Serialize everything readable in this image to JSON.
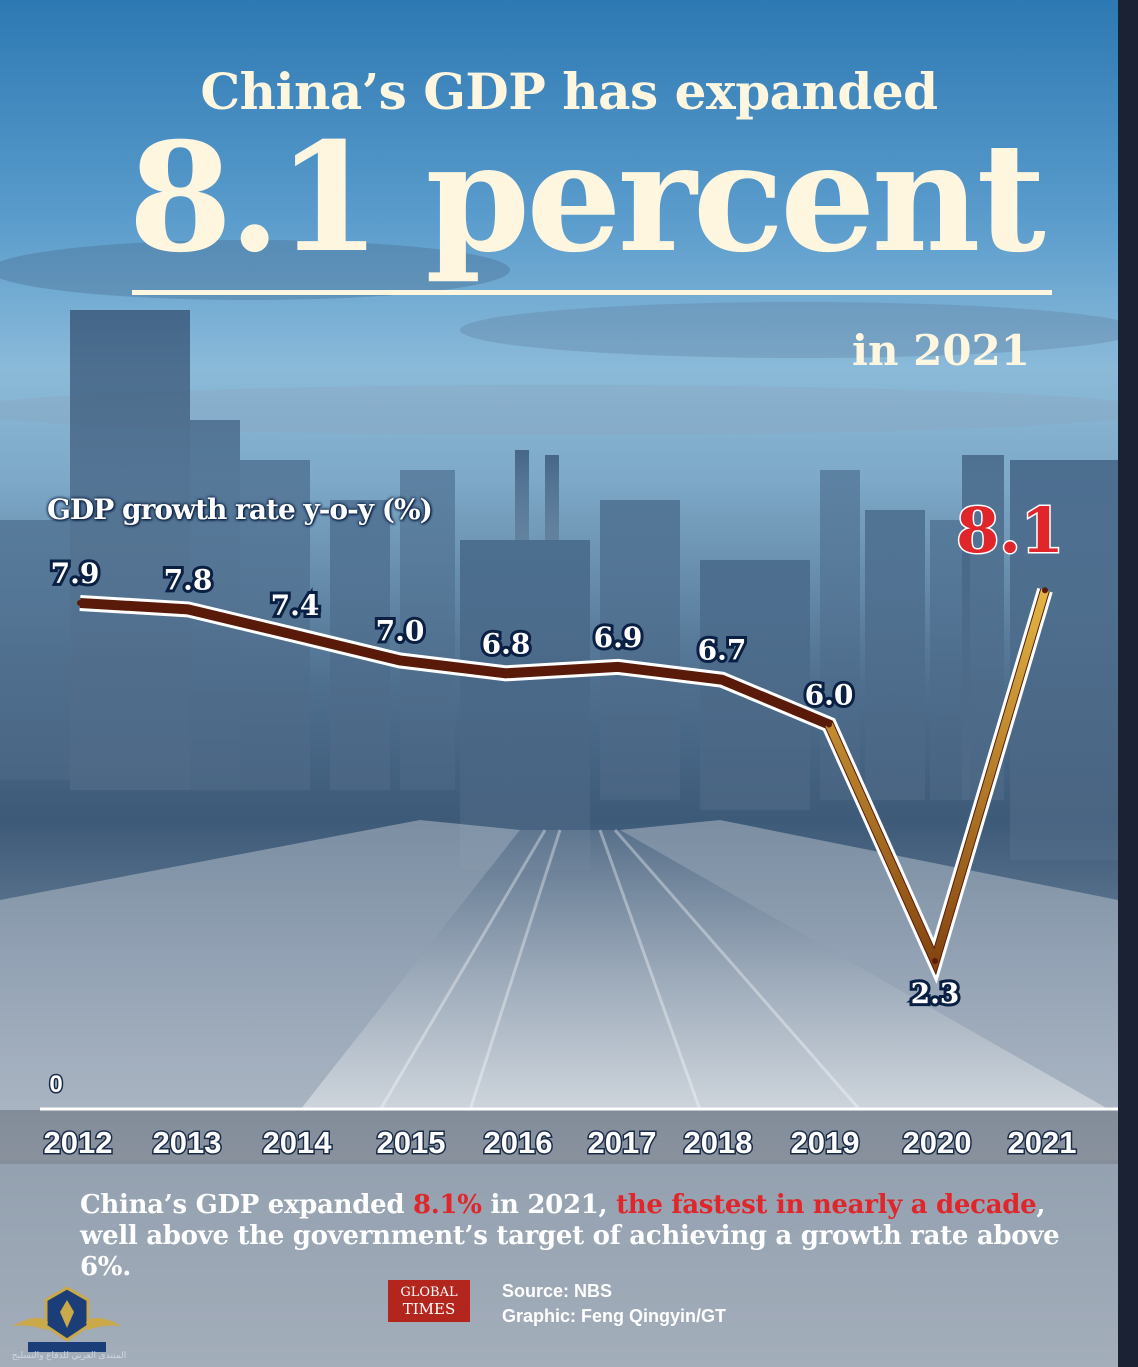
{
  "header": {
    "title_line1": "China’s GDP has expanded",
    "title_line2": "8.1 percent",
    "year_text": "in 2021"
  },
  "chart_data": {
    "type": "line",
    "ylabel": "GDP growth rate y-o-y (%)",
    "categories": [
      "2012",
      "2013",
      "2014",
      "2015",
      "2016",
      "2017",
      "2018",
      "2019",
      "2020",
      "2021"
    ],
    "values": [
      7.9,
      7.8,
      7.4,
      7.0,
      6.8,
      6.9,
      6.7,
      6.0,
      2.3,
      8.1
    ],
    "value_labels": [
      "7.9",
      "7.8",
      "7.4",
      "7.0",
      "6.8",
      "6.9",
      "6.7",
      "6.0",
      "2.3",
      "8.1"
    ],
    "ylim": [
      0,
      9
    ],
    "y_tick_labels": [
      "0"
    ],
    "highlight_index": 9,
    "line_color": "#5a1a0a",
    "highlight_color": "#e0262a"
  },
  "caption": {
    "part1": "China’s GDP expanded ",
    "highlight1": "8.1%",
    "part2": " in 2021, ",
    "highlight2": "the fastest in nearly a decade",
    "part3": ", well above the government’s target of achieving a growth rate above 6%."
  },
  "footer": {
    "logo_line1": "GLOBAL",
    "logo_line2": "TIMES",
    "source": "Source: NBS",
    "credit": "Graphic: Feng Qingyin/GT"
  },
  "watermark": {
    "text": "المنتدى العربي للدفاع والتسليح"
  },
  "colors": {
    "title": "#fff6df",
    "accent_red": "#e0262a",
    "label_navy": "#0a1f44"
  }
}
